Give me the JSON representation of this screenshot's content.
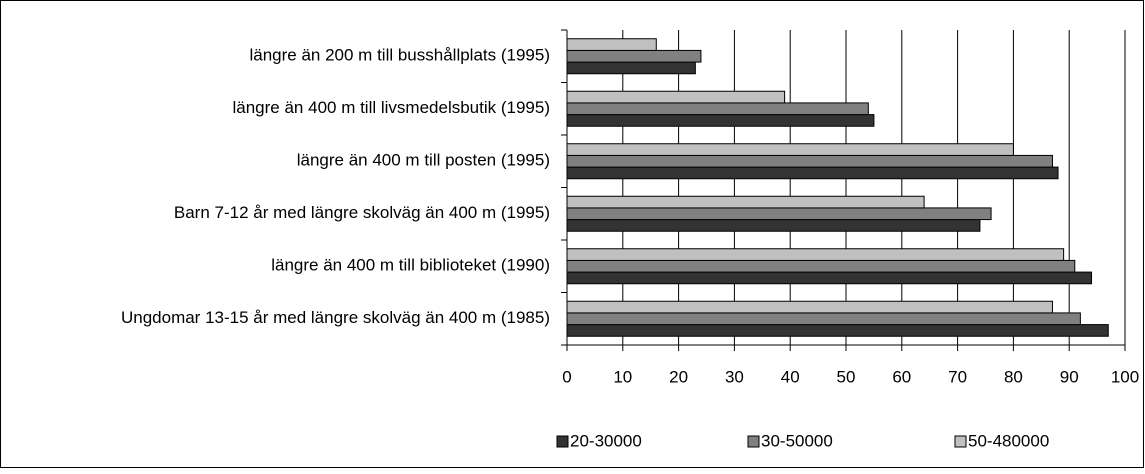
{
  "chart_data": {
    "type": "bar",
    "orientation": "horizontal",
    "categories": [
      "längre än 200 m till busshållplats (1995)",
      "längre än 400 m till livsmedelsbutik (1995)",
      "längre än 400 m till posten (1995)",
      "Barn 7-12 år med längre skolväg än 400 m (1995)",
      "längre än 400 m till biblioteket (1990)",
      "Ungdomar 13-15 år med längre skolväg än 400 m (1985)"
    ],
    "series": [
      {
        "name": "20-30000",
        "color": "#333333",
        "values": [
          23,
          55,
          88,
          74,
          94,
          97
        ]
      },
      {
        "name": "30-50000",
        "color": "#808080",
        "values": [
          24,
          54,
          87,
          76,
          91,
          92
        ]
      },
      {
        "name": "50-480000",
        "color": "#c0c0c0",
        "values": [
          16,
          39,
          80,
          64,
          89,
          87
        ]
      }
    ],
    "xlim": [
      0,
      100
    ],
    "xticks": [
      0,
      10,
      20,
      30,
      40,
      50,
      60,
      70,
      80,
      90,
      100
    ],
    "grid": true,
    "legend": "bottom"
  }
}
